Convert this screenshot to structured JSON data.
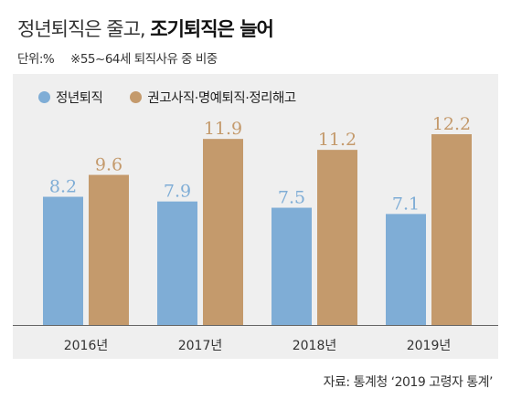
{
  "header": {
    "title_part1": "정년퇴직은 줄고,",
    "title_part2": "조기퇴직은 늘어",
    "unit": "단위:%",
    "note": "※55~64세 퇴직사유 중 비중"
  },
  "source": "자료: 통계청 ‘2019 고령자 통계’",
  "colors": {
    "series1": "#7fadd6",
    "series2": "#c49a6c",
    "panel": "#efefef"
  },
  "chart_data": {
    "type": "bar",
    "categories": [
      "2016년",
      "2017년",
      "2018년",
      "2019년"
    ],
    "series": [
      {
        "name": "정년퇴직",
        "values": [
          8.2,
          7.9,
          7.5,
          7.1
        ],
        "labels": [
          "8.2",
          "7.9",
          "7.5",
          "7.1"
        ]
      },
      {
        "name": "권고사직·명예퇴직·정리해고",
        "values": [
          9.6,
          11.9,
          11.2,
          12.2
        ],
        "labels": [
          "9.6",
          "11.9",
          "11.2",
          "12.2"
        ]
      }
    ],
    "ylim": [
      0,
      15
    ],
    "grid": false,
    "legend": "top-left"
  }
}
